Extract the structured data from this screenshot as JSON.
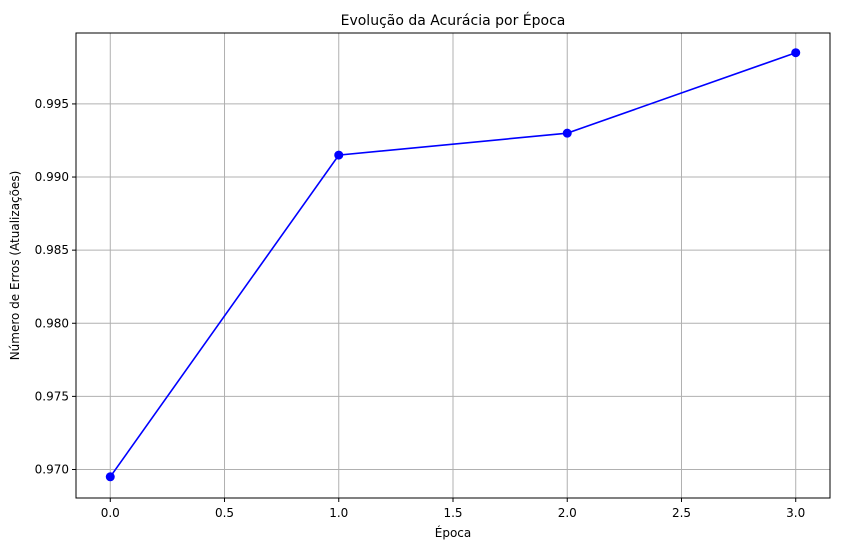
{
  "chart_data": {
    "type": "line",
    "title": "Evolução da Acurácia por Época",
    "xlabel": "Época",
    "ylabel": "Número de Erros (Atualizações)",
    "xlim": [
      -0.15,
      3.15
    ],
    "ylim": [
      0.96805,
      0.99985
    ],
    "xticks": [
      0.0,
      0.5,
      1.0,
      1.5,
      2.0,
      2.5,
      3.0
    ],
    "xtick_labels": [
      "0.0",
      "0.5",
      "1.0",
      "1.5",
      "2.0",
      "2.5",
      "3.0"
    ],
    "yticks": [
      0.97,
      0.975,
      0.98,
      0.985,
      0.99,
      0.995
    ],
    "ytick_labels": [
      "0.970",
      "0.975",
      "0.980",
      "0.985",
      "0.990",
      "0.995"
    ],
    "grid": true,
    "series": [
      {
        "x": [
          0,
          1,
          2,
          3
        ],
        "values": [
          0.9695,
          0.9915,
          0.993,
          0.9985
        ],
        "color": "#0000ff",
        "marker": "circle"
      }
    ]
  }
}
